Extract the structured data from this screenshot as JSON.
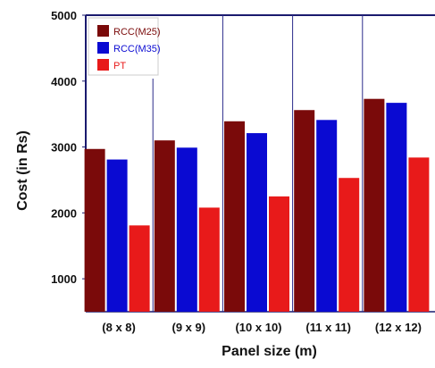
{
  "chart_data": {
    "type": "bar",
    "title": "",
    "xlabel": "Panel size (m)",
    "ylabel": "Cost (in Rs)",
    "categories": [
      "(8 x 8)",
      "(9 x 9)",
      "(10 x 10)",
      "(11 x 11)",
      "(12 x 12)"
    ],
    "series": [
      {
        "name": "RCC(M25)",
        "color": "#7a0a0a",
        "values": [
          2970,
          3100,
          3390,
          3560,
          3730
        ]
      },
      {
        "name": "RCC(M35)",
        "color": "#0a0ad2",
        "values": [
          2810,
          2990,
          3210,
          3410,
          3670
        ]
      },
      {
        "name": "PT",
        "color": "#e81a1a",
        "values": [
          1810,
          2080,
          2250,
          2530,
          2840
        ]
      }
    ],
    "ylim": [
      500,
      5000
    ],
    "yticks": [
      1000,
      2000,
      3000,
      4000,
      5000
    ],
    "legend_position": "top-left",
    "grid": false
  }
}
